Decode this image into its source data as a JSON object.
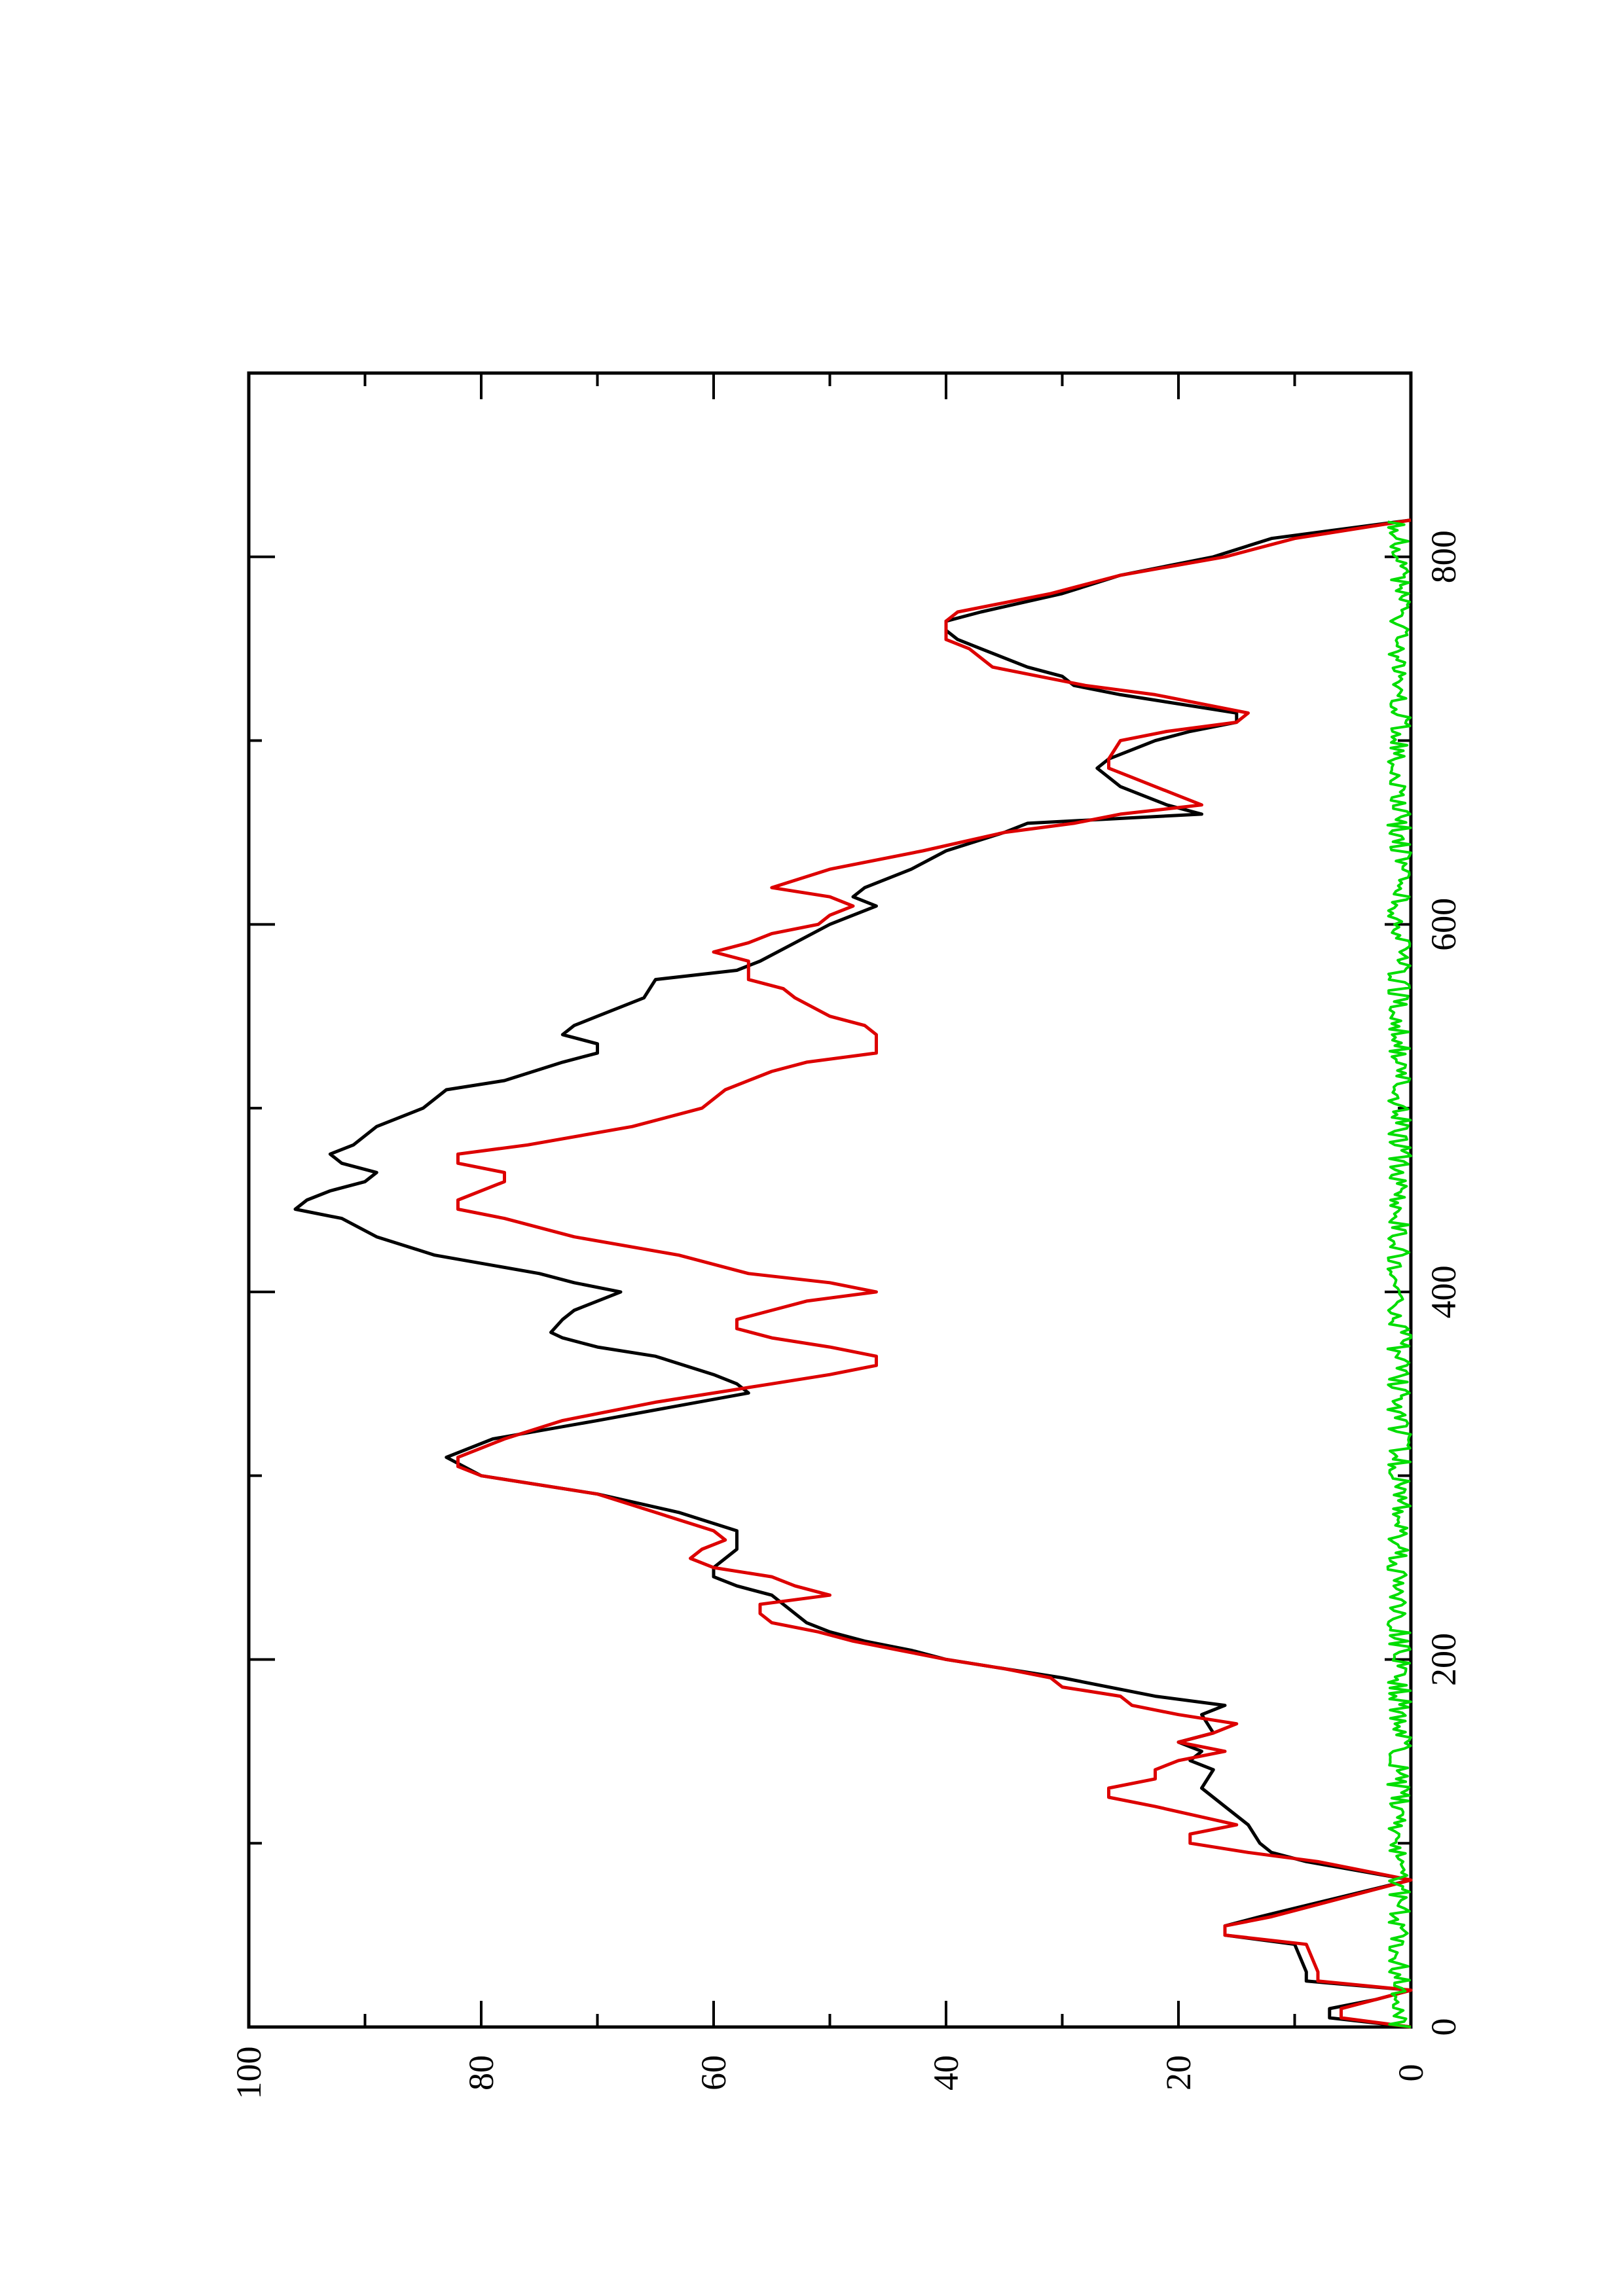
{
  "chart_data": {
    "type": "line",
    "orientation": "rotated-90-clockwise",
    "xlim": [
      0,
      900
    ],
    "ylim": [
      0,
      100
    ],
    "x_ticks": [
      "0",
      "200",
      "400",
      "600",
      "800"
    ],
    "x_tick_values": [
      0,
      200,
      400,
      600,
      800
    ],
    "x_minor_tick_values": [
      100,
      300,
      500,
      700
    ],
    "y_ticks": [
      "0",
      "20",
      "40",
      "60",
      "80",
      "100"
    ],
    "y_tick_values": [
      0,
      20,
      40,
      60,
      80,
      100
    ],
    "y_minor_tick_values": [
      10,
      30,
      50,
      70,
      90
    ],
    "grid": false,
    "legend": "none",
    "series": [
      {
        "color": "#000000",
        "x": [
          0,
          5,
          10,
          15,
          20,
          25,
          30,
          45,
          50,
          55,
          60,
          80,
          90,
          95,
          100,
          110,
          120,
          130,
          140,
          145,
          150,
          155,
          160,
          170,
          175,
          180,
          190,
          195,
          200,
          205,
          210,
          215,
          220,
          225,
          230,
          235,
          240,
          245,
          250,
          255,
          260,
          270,
          280,
          290,
          300,
          310,
          320,
          330,
          345,
          350,
          355,
          365,
          370,
          375,
          378,
          385,
          390,
          395,
          400,
          405,
          410,
          420,
          430,
          440,
          445,
          450,
          455,
          460,
          465,
          470,
          475,
          480,
          490,
          500,
          510,
          515,
          525,
          530,
          535,
          540,
          545,
          550,
          560,
          570,
          575,
          580,
          590,
          600,
          605,
          610,
          615,
          620,
          630,
          640,
          650,
          655,
          660,
          665,
          670,
          675,
          680,
          685,
          690,
          700,
          705,
          710,
          715,
          720,
          725,
          730,
          735,
          740,
          750,
          755,
          760,
          765,
          770,
          780,
          790,
          800,
          810,
          820
        ],
        "y": [
          0,
          7,
          7,
          3,
          0,
          9,
          9,
          10,
          16,
          16,
          13,
          0,
          9,
          12,
          13,
          14,
          16,
          18,
          17,
          19,
          18,
          20,
          17,
          18,
          16,
          22,
          30,
          35,
          40,
          43,
          47,
          50,
          52,
          53,
          54,
          55,
          58,
          60,
          60,
          59,
          58,
          58,
          63,
          70,
          80,
          83,
          79,
          70,
          57,
          58,
          60,
          65,
          70,
          73,
          74,
          73,
          72,
          70,
          68,
          72,
          75,
          84,
          89,
          92,
          96,
          95,
          93,
          90,
          89,
          92,
          93,
          91,
          89,
          85,
          83,
          78,
          73,
          70,
          70,
          73,
          72,
          70,
          66,
          65,
          58,
          56,
          53,
          50,
          48,
          46,
          48,
          47,
          43,
          40,
          35,
          33,
          18,
          21,
          23,
          25,
          26,
          27,
          26,
          22,
          19,
          15,
          15,
          20,
          25,
          29,
          30,
          33,
          37,
          39,
          40,
          40,
          37,
          30,
          25,
          17,
          12,
          0
        ]
      },
      {
        "color": "#dd0000",
        "x": [
          0,
          5,
          10,
          15,
          20,
          25,
          30,
          45,
          50,
          55,
          60,
          80,
          90,
          95,
          100,
          105,
          110,
          120,
          125,
          130,
          135,
          140,
          145,
          150,
          155,
          160,
          165,
          170,
          175,
          180,
          185,
          190,
          195,
          200,
          205,
          210,
          215,
          220,
          225,
          230,
          235,
          240,
          245,
          250,
          255,
          260,
          265,
          270,
          280,
          290,
          300,
          305,
          310,
          315,
          320,
          330,
          340,
          350,
          355,
          360,
          365,
          370,
          375,
          380,
          385,
          390,
          395,
          400,
          405,
          410,
          420,
          430,
          440,
          445,
          450,
          460,
          465,
          470,
          475,
          480,
          490,
          500,
          510,
          520,
          525,
          530,
          540,
          545,
          550,
          560,
          565,
          570,
          580,
          585,
          590,
          595,
          600,
          605,
          610,
          615,
          620,
          630,
          640,
          650,
          655,
          660,
          665,
          670,
          675,
          680,
          685,
          690,
          700,
          705,
          710,
          715,
          720,
          725,
          730,
          735,
          740,
          750,
          755,
          760,
          765,
          770,
          780,
          790,
          800,
          810,
          820
        ],
        "y": [
          0,
          6,
          6,
          3,
          0,
          8,
          8,
          9,
          16,
          16,
          12,
          0,
          8,
          14,
          19,
          19,
          15,
          22,
          26,
          26,
          22,
          22,
          20,
          16,
          20,
          17,
          15,
          20,
          24,
          25,
          30,
          31,
          35,
          40,
          44,
          48,
          51,
          55,
          56,
          56,
          50,
          53,
          55,
          60,
          62,
          61,
          59,
          60,
          65,
          70,
          80,
          82,
          82,
          80,
          78,
          73,
          65,
          55,
          50,
          46,
          46,
          50,
          55,
          58,
          58,
          55,
          52,
          46,
          50,
          57,
          63,
          72,
          78,
          82,
          82,
          78,
          78,
          82,
          82,
          76,
          67,
          61,
          59,
          55,
          52,
          46,
          46,
          47,
          50,
          53,
          54,
          57,
          57,
          60,
          57,
          55,
          51,
          50,
          48,
          50,
          55,
          50,
          42,
          35,
          29,
          25,
          18,
          20,
          22,
          24,
          26,
          26,
          25,
          21,
          15,
          14,
          18,
          22,
          28,
          32,
          36,
          38,
          40,
          40,
          40,
          39,
          31,
          25,
          16,
          10,
          0
        ]
      },
      {
        "color": "#00dd00",
        "noise": true,
        "x_range": [
          0,
          820
        ],
        "y_range": [
          0,
          2
        ]
      }
    ]
  }
}
